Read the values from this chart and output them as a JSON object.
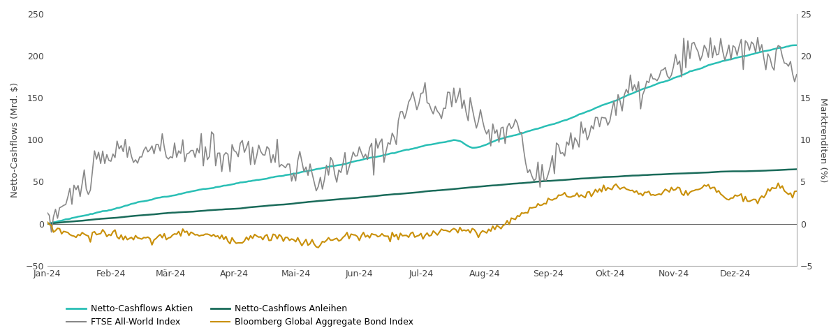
{
  "left_ylim": [
    -50,
    250
  ],
  "right_ylim": [
    -5,
    25
  ],
  "left_yticks": [
    -50,
    0,
    50,
    100,
    150,
    200,
    250
  ],
  "right_yticks": [
    -5,
    0,
    5,
    10,
    15,
    20,
    25
  ],
  "left_ylabel": "Netto-Cashflows (Mrd. $)",
  "right_ylabel": "Marktrenditen (%)",
  "xlabel_ticks": [
    "Jan-24",
    "Feb-24",
    "Mär-24",
    "Apr-24",
    "Mai-24",
    "Jun-24",
    "Jul-24",
    "Aug-24",
    "Sep-24",
    "Okt-24",
    "Nov-24",
    "Dez-24"
  ],
  "color_aktien": "#2abfb5",
  "color_anleihen": "#1a6b5a",
  "color_ftse": "#888888",
  "color_bloomberg": "#c9900a",
  "legend_labels": [
    "Netto-Cashflows Aktien",
    "Netto-Cashflows Anleihen",
    "FTSE All-World Index",
    "Bloomberg Global Aggregate Bond Index"
  ],
  "background_color": "#ffffff",
  "ftse_points_t": [
    0.0,
    0.04,
    0.07,
    0.1,
    0.12,
    0.14,
    0.16,
    0.18,
    0.2,
    0.22,
    0.24,
    0.26,
    0.28,
    0.3,
    0.32,
    0.34,
    0.36,
    0.38,
    0.4,
    0.42,
    0.44,
    0.455,
    0.465,
    0.475,
    0.49,
    0.5,
    0.51,
    0.52,
    0.53,
    0.54,
    0.55,
    0.565,
    0.58,
    0.59,
    0.6,
    0.61,
    0.62,
    0.63,
    0.64,
    0.65,
    0.67,
    0.69,
    0.71,
    0.73,
    0.75,
    0.77,
    0.79,
    0.81,
    0.83,
    0.845,
    0.855,
    0.865,
    0.875,
    0.885,
    0.895,
    0.905,
    0.915,
    0.925,
    0.935,
    0.945,
    0.955,
    0.965,
    0.975,
    0.985,
    1.0
  ],
  "ftse_points_v": [
    0,
    4,
    7,
    9,
    8,
    9,
    8,
    9,
    8,
    9,
    8,
    9,
    9,
    8,
    7,
    6,
    5,
    6,
    7,
    8,
    9,
    10,
    11,
    13,
    15,
    15,
    14,
    13,
    14,
    15,
    15,
    14,
    12,
    11,
    10,
    11,
    12,
    12,
    6,
    6,
    7,
    9,
    10,
    12,
    13,
    15,
    16,
    17,
    18,
    19,
    20,
    21,
    20,
    21,
    21,
    21,
    20,
    20,
    21,
    21,
    20,
    20,
    20,
    19,
    18
  ],
  "bloomberg_points_t": [
    0.0,
    0.02,
    0.05,
    0.08,
    0.1,
    0.13,
    0.16,
    0.19,
    0.22,
    0.25,
    0.28,
    0.3,
    0.33,
    0.36,
    0.38,
    0.4,
    0.42,
    0.44,
    0.46,
    0.48,
    0.5,
    0.52,
    0.54,
    0.56,
    0.58,
    0.6,
    0.62,
    0.64,
    0.66,
    0.68,
    0.7,
    0.72,
    0.74,
    0.76,
    0.78,
    0.8,
    0.82,
    0.84,
    0.86,
    0.88,
    0.89,
    0.9,
    0.91,
    0.92,
    0.93,
    0.94,
    0.95,
    0.96,
    0.97,
    0.98,
    0.99,
    1.0
  ],
  "bloomberg_points_v": [
    0,
    -1.0,
    -1.5,
    -1.0,
    -1.5,
    -2.0,
    -1.5,
    -1.0,
    -1.5,
    -2.0,
    -1.5,
    -1.5,
    -2.0,
    -2.5,
    -2.0,
    -1.5,
    -1.5,
    -1.5,
    -1.5,
    -1.5,
    -1.5,
    -1.0,
    -0.5,
    -1.0,
    -1.0,
    -0.5,
    0.5,
    1.5,
    2.5,
    3.0,
    3.5,
    3.5,
    4.0,
    4.5,
    4.0,
    3.5,
    3.5,
    4.0,
    3.5,
    4.5,
    4.0,
    3.5,
    3.0,
    3.5,
    3.0,
    2.5,
    3.0,
    3.5,
    4.5,
    4.5,
    3.5,
    3.5
  ],
  "aktien_points_t": [
    0.0,
    0.04,
    0.08,
    0.12,
    0.16,
    0.2,
    0.24,
    0.28,
    0.32,
    0.36,
    0.4,
    0.44,
    0.48,
    0.52,
    0.545,
    0.555,
    0.565,
    0.58,
    0.6,
    0.64,
    0.68,
    0.72,
    0.76,
    0.8,
    0.84,
    0.88,
    0.92,
    0.96,
    1.0
  ],
  "aktien_points_v": [
    0,
    8,
    16,
    25,
    33,
    40,
    46,
    52,
    58,
    65,
    72,
    80,
    88,
    96,
    100,
    97,
    90,
    92,
    100,
    110,
    120,
    133,
    148,
    162,
    175,
    188,
    198,
    207,
    213
  ],
  "anleihen_points_t": [
    0.0,
    0.05,
    0.1,
    0.15,
    0.2,
    0.25,
    0.3,
    0.35,
    0.4,
    0.45,
    0.5,
    0.55,
    0.6,
    0.65,
    0.7,
    0.75,
    0.8,
    0.85,
    0.9,
    0.95,
    1.0
  ],
  "anleihen_points_v": [
    0,
    4,
    8,
    12,
    15,
    18,
    22,
    26,
    30,
    34,
    38,
    42,
    46,
    50,
    53,
    56,
    58,
    60,
    62,
    63,
    65
  ],
  "ftse_noise_std": 1.0,
  "bloomberg_noise_std": 0.25,
  "aktien_noise_std": 0.8,
  "anleihen_noise_std": 0.3
}
